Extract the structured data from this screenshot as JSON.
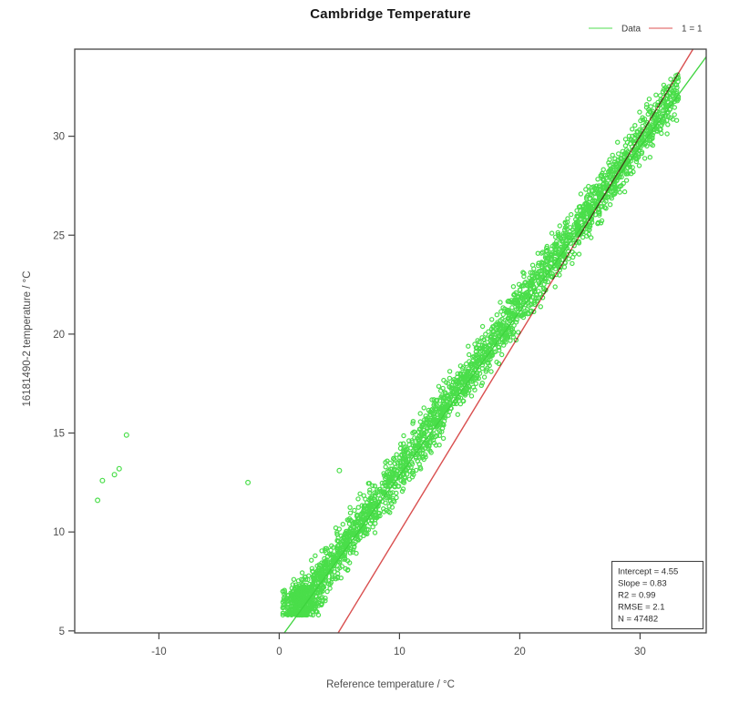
{
  "chart_data": {
    "type": "scatter",
    "title": "Cambridge Temperature",
    "xlabel": "Reference temperature / °C",
    "ylabel": "16181490-2 temperature / °C",
    "xlim": [
      -17.0,
      35.5
    ],
    "ylim": [
      4.9,
      34.4
    ],
    "x_ticks": [
      -10,
      0,
      10,
      20,
      30
    ],
    "y_ticks": [
      5,
      10,
      15,
      20,
      25,
      30
    ],
    "grid": false,
    "frame_color": "#444444",
    "tick_label_color": "#4d4d4d",
    "legend": {
      "position": "top-right",
      "entries": [
        {
          "label": "Data",
          "type": "line",
          "color": "#8ae88a"
        },
        {
          "label": "1 = 1",
          "type": "line",
          "color": "#e88b8b"
        }
      ]
    },
    "series": [
      {
        "name": "Data",
        "kind": "scatter-band",
        "marker": "open-circle",
        "color": "#4ade4a",
        "n_points_actual": 47482,
        "n_points_rendered": 2400,
        "band": {
          "x_min": 0.5,
          "x_max": 33.2,
          "center_intercept": 4.55,
          "center_slope": 0.83,
          "offset_mean": 0.3,
          "offset_sd": 0.6,
          "offset_clamp": [
            -1.2,
            1.8
          ],
          "y_floor_lowx": 5.85,
          "seed": 1337
        },
        "bottom_cluster": {
          "n": 260,
          "x_mean": 1.7,
          "x_sd": 0.8,
          "x_clamp": [
            0.3,
            3.6
          ],
          "y_mean": 6.5,
          "y_sd": 0.45,
          "y_clamp": [
            5.8,
            7.6
          ]
        },
        "outliers": [
          [
            -15.1,
            11.6
          ],
          [
            -14.7,
            12.6
          ],
          [
            -13.7,
            12.9
          ],
          [
            -13.3,
            13.2
          ],
          [
            -12.7,
            14.9
          ],
          [
            -2.6,
            12.5
          ],
          [
            5.0,
            13.1
          ]
        ]
      }
    ],
    "fit_line": {
      "label": "Data",
      "intercept": 4.55,
      "slope": 0.83,
      "color": "#3ed43e"
    },
    "identity_line": {
      "label": "1 = 1",
      "intercept": 0,
      "slope": 1,
      "color": "#d94f4f"
    },
    "stats_box": {
      "position": "bottom-right",
      "text_color": "#2b2b2b",
      "lines": [
        "Intercept = 4.55",
        "Slope = 0.83",
        "R2 = 0.99",
        "RMSE = 2.1",
        "N = 47482"
      ]
    }
  }
}
